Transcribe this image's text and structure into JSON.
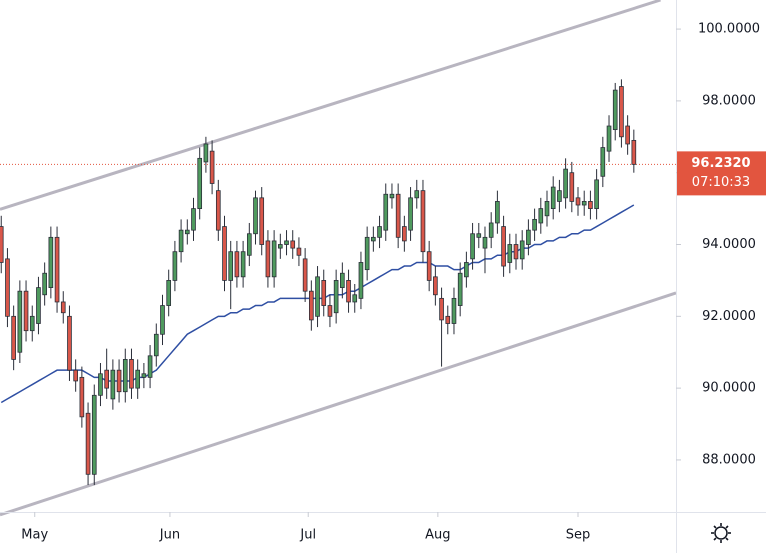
{
  "chart_data": {
    "type": "candlestick",
    "xlim": [
      -0.2,
      108.8
    ],
    "xticks": [
      {
        "value": 5.4,
        "label": "May"
      },
      {
        "value": 27.2,
        "label": "Jun"
      },
      {
        "value": 49.5,
        "label": "Jul"
      },
      {
        "value": 70.4,
        "label": "Aug"
      },
      {
        "value": 93.0,
        "label": "Sep"
      }
    ],
    "ylim": [
      86.55,
      100.81
    ],
    "yticks": [
      {
        "value": 88,
        "label": "88.0000"
      },
      {
        "value": 90,
        "label": "90.0000"
      },
      {
        "value": 92,
        "label": "92.0000"
      },
      {
        "value": 94,
        "label": "94.0000"
      },
      {
        "value": 96,
        "label": "96.0000"
      },
      {
        "value": 98,
        "label": "98.0000"
      },
      {
        "value": 100,
        "label": "100.0000"
      }
    ],
    "up_color": "#4f9a5e",
    "down_color": "#d9574a",
    "open": [
      94.5,
      93.6,
      92.0,
      91.0,
      92.7,
      91.6,
      91.8,
      92.6,
      92.8,
      94.2,
      92.4,
      92.0,
      90.5,
      90.3,
      89.3,
      87.6,
      89.8,
      90.5,
      89.7,
      90.5,
      89.9,
      90.8,
      90.0,
      90.3,
      90.3,
      90.9,
      91.5,
      92.3,
      93.0,
      93.8,
      94.3,
      94.4,
      95.0,
      96.3,
      96.6,
      95.5,
      94.5,
      93.0,
      93.8,
      93.1,
      93.7,
      94.3,
      95.3,
      94.1,
      93.1,
      93.9,
      94.0,
      94.1,
      93.9,
      93.6,
      92.7,
      92.0,
      93.0,
      92.3,
      92.1,
      92.8,
      93.0,
      92.4,
      92.5,
      93.3,
      94.1,
      94.2,
      94.4,
      95.3,
      95.4,
      94.5,
      94.4,
      95.3,
      95.5,
      93.8,
      93.1,
      92.5,
      92.0,
      91.8,
      92.3,
      93.1,
      93.6,
      94.2,
      93.9,
      94.2,
      94.6,
      94.5,
      93.5,
      94.0,
      93.6,
      94.0,
      94.4,
      94.6,
      94.8,
      95.0,
      95.2,
      95.3,
      96.0,
      95.3,
      95.1,
      95.2,
      95.0,
      95.9,
      96.6,
      97.2,
      98.4,
      97.3,
      96.9
    ],
    "high": [
      94.8,
      93.9,
      92.3,
      93.0,
      93.0,
      92.3,
      93.1,
      93.5,
      94.5,
      94.5,
      92.7,
      92.3,
      90.8,
      90.6,
      89.6,
      90.1,
      90.7,
      91.1,
      90.8,
      90.8,
      91.1,
      91.1,
      90.8,
      90.7,
      91.2,
      91.8,
      92.6,
      93.3,
      94.1,
      94.7,
      94.7,
      95.3,
      96.7,
      97.0,
      96.9,
      95.8,
      94.8,
      94.1,
      94.1,
      94.1,
      94.6,
      95.5,
      95.6,
      94.4,
      94.4,
      94.3,
      94.4,
      94.4,
      94.2,
      93.9,
      93.0,
      93.4,
      93.3,
      92.6,
      93.3,
      93.5,
      93.3,
      92.9,
      93.8,
      94.5,
      94.5,
      94.8,
      95.7,
      95.7,
      95.7,
      94.8,
      95.6,
      95.8,
      95.8,
      94.1,
      93.4,
      92.8,
      92.3,
      92.8,
      93.5,
      93.8,
      94.6,
      94.6,
      94.5,
      94.9,
      95.5,
      94.8,
      94.3,
      94.3,
      94.4,
      94.7,
      95.0,
      95.3,
      95.5,
      95.9,
      95.8,
      96.4,
      96.3,
      95.6,
      95.5,
      95.5,
      96.1,
      97.0,
      97.6,
      98.5,
      98.6,
      97.6,
      97.2
    ],
    "low": [
      93.2,
      91.7,
      90.5,
      90.7,
      91.3,
      91.3,
      91.5,
      92.3,
      92.5,
      92.1,
      91.8,
      90.2,
      89.9,
      88.9,
      87.3,
      87.3,
      89.5,
      89.7,
      89.4,
      89.6,
      89.6,
      89.7,
      89.7,
      90.0,
      90.0,
      90.6,
      91.2,
      92.0,
      92.7,
      93.5,
      94.0,
      94.1,
      94.7,
      96.0,
      95.4,
      94.1,
      92.7,
      92.2,
      92.8,
      92.8,
      93.4,
      94.0,
      93.7,
      92.8,
      92.8,
      93.6,
      93.7,
      93.6,
      93.4,
      92.4,
      91.6,
      91.7,
      92.0,
      91.7,
      91.8,
      92.5,
      92.1,
      92.1,
      92.2,
      93.0,
      93.8,
      93.9,
      94.1,
      95.0,
      93.9,
      93.8,
      94.1,
      95.0,
      93.5,
      92.7,
      92.3,
      90.6,
      91.5,
      91.5,
      92.0,
      92.8,
      93.3,
      93.9,
      93.2,
      93.9,
      94.3,
      93.1,
      93.2,
      93.3,
      93.3,
      93.7,
      94.1,
      94.3,
      94.5,
      94.7,
      94.9,
      95.0,
      94.9,
      94.8,
      94.8,
      94.7,
      94.7,
      95.6,
      96.3,
      96.9,
      96.7,
      96.5,
      96.0
    ],
    "close": [
      93.5,
      92.0,
      90.8,
      92.7,
      91.6,
      92.0,
      92.8,
      93.2,
      94.2,
      92.4,
      92.1,
      90.5,
      90.2,
      89.2,
      87.6,
      89.8,
      90.4,
      90.0,
      90.5,
      89.9,
      90.8,
      90.0,
      90.5,
      90.4,
      90.9,
      91.5,
      92.3,
      93.0,
      93.8,
      94.4,
      94.4,
      95.0,
      96.4,
      96.8,
      95.7,
      94.4,
      93.0,
      93.8,
      93.1,
      93.8,
      94.3,
      95.3,
      94.0,
      93.1,
      94.1,
      94.0,
      94.1,
      93.9,
      93.7,
      92.7,
      91.9,
      93.1,
      92.3,
      92.0,
      93.0,
      93.2,
      92.4,
      92.6,
      93.5,
      94.2,
      94.2,
      94.5,
      95.4,
      95.4,
      94.2,
      94.1,
      95.3,
      95.5,
      93.8,
      93.0,
      92.6,
      91.9,
      91.8,
      92.5,
      93.2,
      93.5,
      94.3,
      94.3,
      94.2,
      94.6,
      95.2,
      93.4,
      94.0,
      93.6,
      94.1,
      94.4,
      94.7,
      95.0,
      95.2,
      95.6,
      95.5,
      96.1,
      95.2,
      95.1,
      95.2,
      95.0,
      95.8,
      96.7,
      97.3,
      98.3,
      97.0,
      96.8,
      96.232
    ],
    "moving_average": {
      "color": "#2f4fa3",
      "values": [
        89.6,
        89.7,
        89.8,
        89.9,
        90.0,
        90.1,
        90.2,
        90.3,
        90.4,
        90.5,
        90.5,
        90.5,
        90.5,
        90.5,
        90.4,
        90.3,
        90.3,
        90.2,
        90.2,
        90.2,
        90.2,
        90.2,
        90.3,
        90.3,
        90.4,
        90.5,
        90.7,
        90.9,
        91.1,
        91.3,
        91.5,
        91.6,
        91.7,
        91.8,
        91.9,
        92.0,
        92.0,
        92.1,
        92.1,
        92.2,
        92.2,
        92.3,
        92.3,
        92.4,
        92.4,
        92.5,
        92.5,
        92.5,
        92.5,
        92.5,
        92.5,
        92.5,
        92.5,
        92.6,
        92.6,
        92.6,
        92.7,
        92.7,
        92.8,
        92.9,
        93.0,
        93.1,
        93.2,
        93.3,
        93.3,
        93.4,
        93.4,
        93.5,
        93.5,
        93.5,
        93.4,
        93.4,
        93.4,
        93.3,
        93.3,
        93.4,
        93.5,
        93.5,
        93.6,
        93.6,
        93.7,
        93.7,
        93.8,
        93.8,
        93.9,
        93.9,
        94.0,
        94.0,
        94.1,
        94.1,
        94.2,
        94.2,
        94.3,
        94.3,
        94.4,
        94.4,
        94.5,
        94.6,
        94.7,
        94.8,
        94.9,
        95.0,
        95.1
      ]
    },
    "channel_lines": {
      "color": "#b8b5c0",
      "lines": [
        {
          "x": [
            -0.2,
            106.3
          ],
          "y": [
            94.98,
            100.81
          ]
        },
        {
          "x": [
            -0.2,
            108.8
          ],
          "y": [
            86.47,
            92.65
          ]
        }
      ]
    },
    "last_price": {
      "value": 96.232,
      "label": "96.2320",
      "countdown": "07:10:33",
      "color": "#e2553f"
    }
  }
}
